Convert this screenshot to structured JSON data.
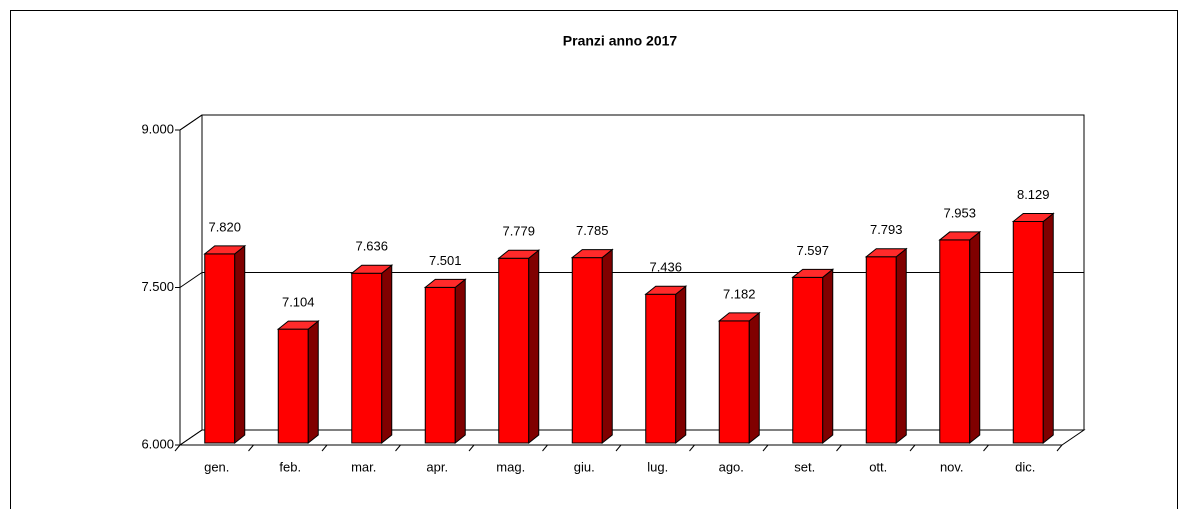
{
  "chart_data": {
    "type": "bar",
    "title": "Pranzi anno 2017",
    "categories": [
      "gen.",
      "feb.",
      "mar.",
      "apr.",
      "mag.",
      "giu.",
      "lug.",
      "ago.",
      "set.",
      "ott.",
      "nov.",
      "dic."
    ],
    "values": [
      7820,
      7104,
      7636,
      7501,
      7779,
      7785,
      7436,
      7182,
      7597,
      7793,
      7953,
      8129
    ],
    "value_labels": [
      "7.820",
      "7.104",
      "7.636",
      "7.501",
      "7.779",
      "7.785",
      "7.436",
      "7.182",
      "7.597",
      "7.793",
      "7.953",
      "8.129"
    ],
    "color": "#ff0000",
    "ylim": [
      6000,
      9000
    ],
    "yticks": [
      {
        "value": 6000,
        "label": "6.000"
      },
      {
        "value": 7500,
        "label": "7.500"
      },
      {
        "value": 9000,
        "label": "9.000"
      }
    ],
    "grid": true
  }
}
